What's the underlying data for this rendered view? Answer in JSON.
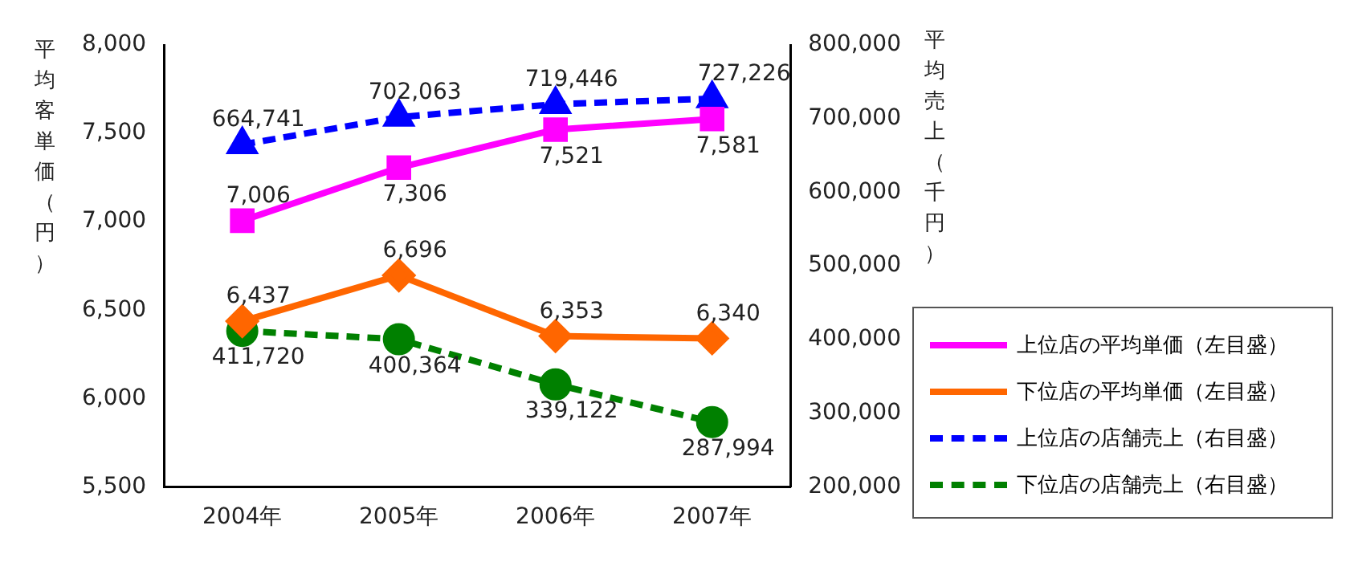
{
  "chart_data": {
    "type": "line",
    "ylabel": "平均客単価（円）",
    "y2label": "平均売上（千円）",
    "categories": [
      "2004年",
      "2005年",
      "2006年",
      "2007年"
    ],
    "series": [
      {
        "name": "上位店の平均単価（左目盛）",
        "color": "#ff00ff",
        "values": [
          7006,
          7306,
          7521,
          7581
        ],
        "value_labels": [
          "7,006",
          "7,306",
          "7,521",
          "7,581"
        ],
        "marker": "square",
        "line_style": "solid"
      },
      {
        "name": "下位店の平均単価（左目盛）",
        "color": "#ff6600",
        "values": [
          6437,
          6696,
          6353,
          6340
        ],
        "value_labels": [
          "6,437",
          "6,696",
          "6,353",
          "6,340"
        ],
        "marker": "diamond",
        "line_style": "solid"
      },
      {
        "name": "上位店の店舗売上（右目盛）",
        "color": "#0000ff",
        "values": [
          664741,
          702063,
          719446,
          727226
        ],
        "value_labels": [
          "664,741",
          "702,063",
          "719,446",
          "727,226"
        ],
        "marker": "triangle",
        "line_style": "dashed",
        "axis": "y2"
      },
      {
        "name": "下位店の店舗売上（右目盛）",
        "color": "#008000",
        "values": [
          411720,
          400364,
          339122,
          287994
        ],
        "value_labels": [
          "411,720",
          "400,364",
          "339,122",
          "287,994"
        ],
        "marker": "circle",
        "line_style": "dashed",
        "axis": "y2"
      }
    ],
    "ylim": [
      5500,
      8000
    ],
    "yticks": [
      {
        "value": 5500,
        "label": "5,500"
      },
      {
        "value": 6000,
        "label": "6,000"
      },
      {
        "value": 6500,
        "label": "6,500"
      },
      {
        "value": 7000,
        "label": "7,000"
      },
      {
        "value": 7500,
        "label": "7,500"
      },
      {
        "value": 8000,
        "label": "8,000"
      }
    ],
    "y2lim": [
      200000,
      800000
    ],
    "y2ticks": [
      {
        "value": 200000,
        "label": "200,000"
      },
      {
        "value": 300000,
        "label": "300,000"
      },
      {
        "value": 400000,
        "label": "400,000"
      },
      {
        "value": 500000,
        "label": "500,000"
      },
      {
        "value": 600000,
        "label": "600,000"
      },
      {
        "value": 700000,
        "label": "700,000"
      },
      {
        "value": 800000,
        "label": "800,000"
      }
    ],
    "grid": false,
    "legend": "bottom right"
  }
}
